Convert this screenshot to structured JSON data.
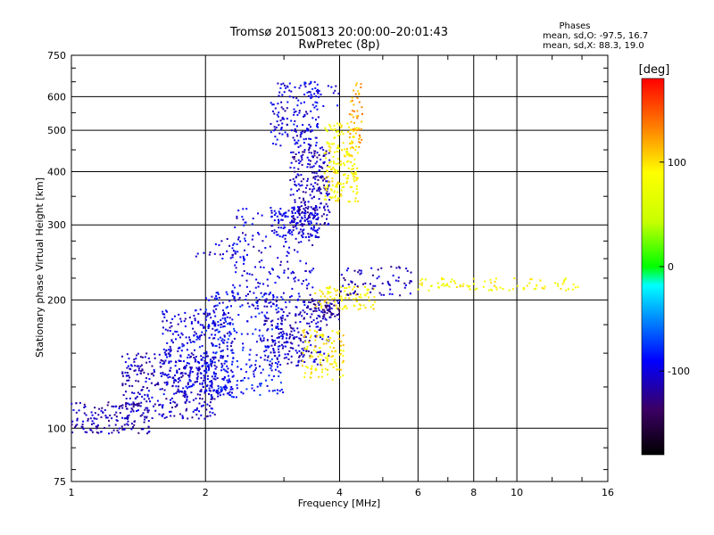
{
  "chart_data": {
    "type": "scatter",
    "title": "Tromsø 20150813 20:00:00–20:01:43",
    "subtitle": "RwPretec (8p)",
    "xlabel": "Frequency [MHz]",
    "ylabel": "Stationary phase Virtual Height [km]",
    "x_scale": "log",
    "y_scale": "log",
    "xlim": [
      1,
      16
    ],
    "ylim": [
      75,
      750
    ],
    "grid": true,
    "x_ticks": [
      "1",
      "2",
      "4",
      "6",
      "8",
      "10",
      "16"
    ],
    "y_ticks": [
      "75",
      "100",
      "200",
      "300",
      "400",
      "500",
      "600",
      "750"
    ],
    "stats": {
      "heading": "Phases",
      "line_o": "mean, sd,O:  -97.5, 16.7",
      "line_x": "mean, sd,X:  88.3, 19.0"
    },
    "colorbar": {
      "label": "[deg]",
      "min": -180,
      "max": 180,
      "ticks": [
        "100",
        "0",
        "-100"
      ],
      "tick_values": [
        100,
        0,
        -100
      ]
    },
    "clusters": [
      {
        "fmin": 1.0,
        "fmax": 1.5,
        "hmin": 97,
        "hmax": 115,
        "phase": -112,
        "n": 140
      },
      {
        "fmin": 1.3,
        "fmax": 2.1,
        "hmin": 105,
        "hmax": 150,
        "phase": -108,
        "n": 330
      },
      {
        "fmin": 1.6,
        "fmax": 2.3,
        "hmin": 120,
        "hmax": 190,
        "phase": -100,
        "n": 330
      },
      {
        "fmin": 2.0,
        "fmax": 3.0,
        "hmin": 118,
        "hmax": 210,
        "phase": -90,
        "n": 300
      },
      {
        "fmin": 2.3,
        "fmax": 3.5,
        "hmin": 190,
        "hmax": 330,
        "phase": -100,
        "n": 180
      },
      {
        "fmin": 1.9,
        "fmax": 2.5,
        "hmin": 250,
        "hmax": 280,
        "phase": -100,
        "n": 30
      },
      {
        "fmin": 2.7,
        "fmax": 3.8,
        "hmin": 140,
        "hmax": 200,
        "phase": -110,
        "n": 220
      },
      {
        "fmin": 3.3,
        "fmax": 4.0,
        "hmin": 180,
        "hmax": 200,
        "phase": -120,
        "n": 70
      },
      {
        "fmin": 3.3,
        "fmax": 4.1,
        "hmin": 130,
        "hmax": 170,
        "phase": 95,
        "n": 110
      },
      {
        "fmin": 3.5,
        "fmax": 4.8,
        "hmin": 190,
        "hmax": 215,
        "phase": 90,
        "n": 90
      },
      {
        "fmin": 4.0,
        "fmax": 5.8,
        "hmin": 205,
        "hmax": 240,
        "phase": -110,
        "n": 70
      },
      {
        "fmin": 6.0,
        "fmax": 14.0,
        "hmin": 210,
        "hmax": 225,
        "phase": 85,
        "n": 90
      },
      {
        "fmin": 2.8,
        "fmax": 3.6,
        "hmin": 280,
        "hmax": 330,
        "phase": -100,
        "n": 120
      },
      {
        "fmin": 3.1,
        "fmax": 3.8,
        "hmin": 300,
        "hmax": 460,
        "phase": -110,
        "n": 240
      },
      {
        "fmin": 3.7,
        "fmax": 4.4,
        "hmin": 340,
        "hmax": 520,
        "phase": 90,
        "n": 200
      },
      {
        "fmin": 4.2,
        "fmax": 4.5,
        "hmin": 450,
        "hmax": 650,
        "phase": 120,
        "n": 50
      },
      {
        "fmin": 2.8,
        "fmax": 3.6,
        "hmin": 460,
        "hmax": 650,
        "phase": -100,
        "n": 150
      },
      {
        "fmin": 3.3,
        "fmax": 4.0,
        "hmin": 560,
        "hmax": 650,
        "phase": -95,
        "n": 30
      }
    ]
  }
}
